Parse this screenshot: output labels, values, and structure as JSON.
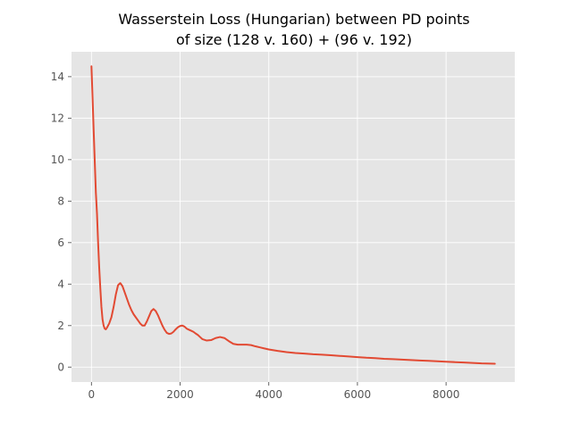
{
  "chart_data": {
    "type": "line",
    "title": "Wasserstein Loss (Hungarian) between PD points\nof size (128 v. 160) + (96 v. 192)",
    "xlabel": "",
    "ylabel": "",
    "xlim": [
      -450,
      9550
    ],
    "ylim": [
      -0.72,
      15.2
    ],
    "xticks": [
      0,
      2000,
      4000,
      6000,
      8000
    ],
    "yticks": [
      0,
      2,
      4,
      6,
      8,
      10,
      12,
      14
    ],
    "grid": true,
    "legend": "none",
    "colors": {
      "line": "#e24a33",
      "plot_background": "#e5e5e5",
      "grid": "#ffffff",
      "tick_label": "#555555",
      "title": "#000000"
    },
    "series": [
      {
        "x": [
          0,
          25,
          50,
          75,
          100,
          125,
          150,
          175,
          200,
          225,
          250,
          275,
          300,
          325,
          350,
          375,
          400,
          450,
          500,
          550,
          600,
          650,
          700,
          750,
          800,
          850,
          900,
          950,
          1000,
          1050,
          1100,
          1150,
          1200,
          1250,
          1300,
          1350,
          1400,
          1450,
          1500,
          1550,
          1600,
          1650,
          1700,
          1750,
          1800,
          1850,
          1900,
          1950,
          2000,
          2050,
          2100,
          2150,
          2200,
          2250,
          2300,
          2350,
          2400,
          2450,
          2500,
          2600,
          2700,
          2800,
          2900,
          3000,
          3100,
          3200,
          3300,
          3400,
          3500,
          3600,
          3700,
          3800,
          3900,
          4000,
          4200,
          4400,
          4600,
          4800,
          5000,
          5200,
          5400,
          5600,
          5800,
          6000,
          6200,
          6400,
          6600,
          6800,
          7000,
          7200,
          7400,
          7600,
          7800,
          8000,
          8200,
          8400,
          8600,
          8800,
          9000,
          9100
        ],
        "y": [
          14.5,
          13.0,
          11.4,
          9.9,
          8.4,
          7.4,
          6.0,
          4.8,
          3.8,
          2.9,
          2.3,
          2.0,
          1.85,
          1.82,
          1.9,
          2.0,
          2.1,
          2.4,
          2.9,
          3.5,
          3.95,
          4.05,
          3.9,
          3.6,
          3.3,
          3.0,
          2.75,
          2.55,
          2.4,
          2.25,
          2.1,
          2.0,
          2.0,
          2.2,
          2.45,
          2.7,
          2.8,
          2.7,
          2.5,
          2.25,
          2.0,
          1.8,
          1.65,
          1.6,
          1.62,
          1.7,
          1.82,
          1.92,
          1.98,
          2.0,
          1.95,
          1.85,
          1.8,
          1.75,
          1.7,
          1.62,
          1.55,
          1.45,
          1.35,
          1.28,
          1.3,
          1.4,
          1.45,
          1.4,
          1.25,
          1.12,
          1.08,
          1.08,
          1.08,
          1.06,
          1.0,
          0.95,
          0.9,
          0.85,
          0.78,
          0.72,
          0.68,
          0.65,
          0.62,
          0.6,
          0.57,
          0.54,
          0.51,
          0.48,
          0.45,
          0.43,
          0.4,
          0.38,
          0.36,
          0.34,
          0.32,
          0.3,
          0.28,
          0.26,
          0.24,
          0.22,
          0.2,
          0.18,
          0.17,
          0.16
        ]
      }
    ]
  }
}
